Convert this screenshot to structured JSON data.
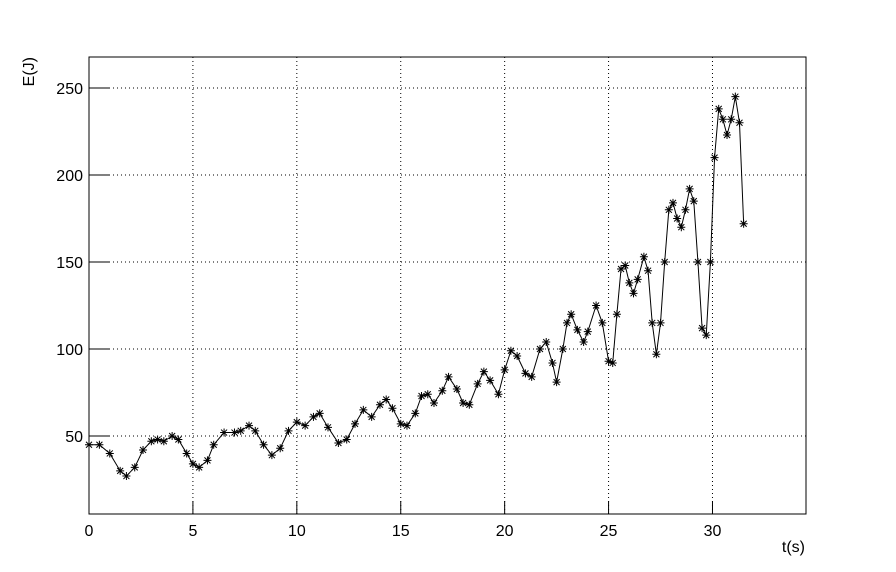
{
  "chart_data": {
    "type": "line",
    "x_label": "t(s)",
    "y_label": "E(J)",
    "color": "#000000",
    "grid": true,
    "xlim": [
      0,
      34.5
    ],
    "ylim": [
      5.2,
      267.8
    ],
    "xticks": [
      0,
      5,
      10,
      15,
      20,
      25,
      30
    ],
    "yticks": [
      50,
      100,
      150,
      200,
      250
    ],
    "x": [
      0,
      0.5,
      1,
      1.5,
      1.8,
      2.2,
      2.6,
      3,
      3.3,
      3.6,
      4,
      4.3,
      4.7,
      5,
      5.3,
      5.7,
      6,
      6.5,
      7,
      7.3,
      7.7,
      8,
      8.4,
      8.8,
      9.2,
      9.6,
      10,
      10.4,
      10.8,
      11.1,
      11.5,
      12,
      12.4,
      12.8,
      13.2,
      13.6,
      14,
      14.3,
      14.6,
      15,
      15.3,
      15.7,
      16,
      16.3,
      16.6,
      17,
      17.3,
      17.7,
      18,
      18.3,
      18.7,
      19,
      19.3,
      19.7,
      20,
      20.3,
      20.6,
      21,
      21.3,
      21.7,
      22,
      22.3,
      22.5,
      22.8,
      23,
      23.2,
      23.5,
      23.8,
      24,
      24.4,
      24.7,
      25,
      25.2,
      25.4,
      25.6,
      25.8,
      26,
      26.2,
      26.4,
      26.7,
      26.9,
      27.1,
      27.3,
      27.5,
      27.7,
      27.9,
      28.1,
      28.3,
      28.5,
      28.7,
      28.9,
      29.1,
      29.3,
      29.5,
      29.7,
      29.9,
      30.1,
      30.3,
      30.5,
      30.7,
      30.9,
      31.1,
      31.3,
      31.5
    ],
    "values": [
      45,
      45,
      40,
      30,
      27,
      32,
      42,
      47,
      48,
      47,
      50,
      48,
      40,
      34,
      32,
      36,
      45,
      52,
      52,
      53,
      56,
      53,
      45,
      39,
      43,
      53,
      58,
      56,
      61,
      63,
      55,
      46,
      48,
      57,
      65,
      61,
      68,
      71,
      66,
      57,
      56,
      63,
      73,
      74,
      69,
      76,
      84,
      77,
      69,
      68,
      80,
      87,
      82,
      74,
      88,
      99,
      96,
      86,
      84,
      100,
      104,
      92,
      81,
      100,
      115,
      120,
      111,
      104,
      110,
      125,
      115,
      93,
      92,
      120,
      146,
      148,
      138,
      132,
      140,
      153,
      145,
      115,
      97,
      115,
      150,
      180,
      184,
      175,
      170,
      180,
      192,
      185,
      150,
      112,
      108,
      150,
      210,
      238,
      232,
      223,
      232,
      245,
      230,
      172
    ]
  }
}
